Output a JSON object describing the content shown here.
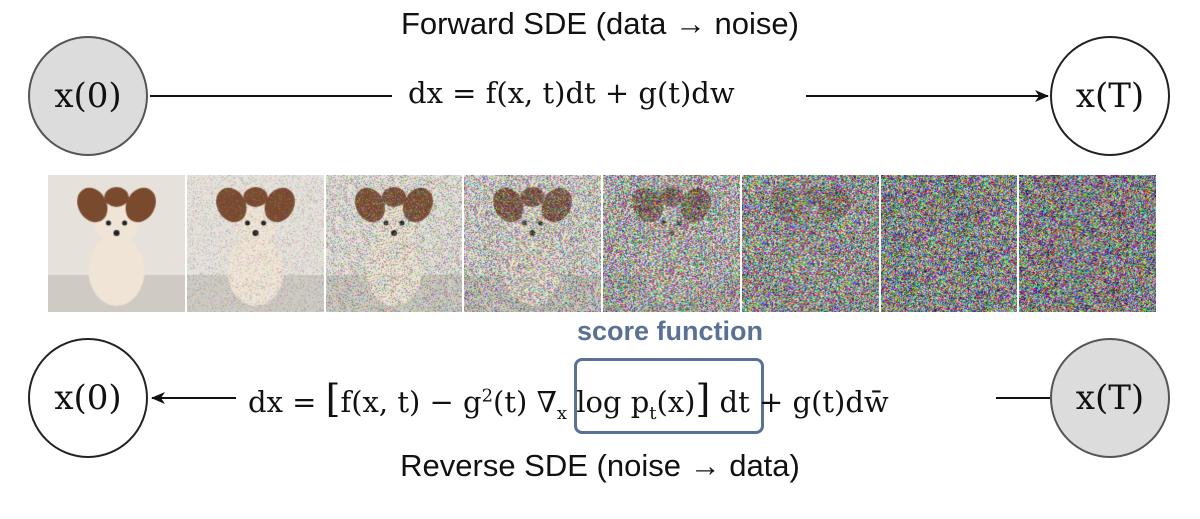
{
  "forward": {
    "title": "Forward SDE (data → noise)",
    "start_node": "x(0)",
    "end_node": "x(T)",
    "eq_lhs": "dx =",
    "eq_rhs": "f(x, t)dt + g(t)dw"
  },
  "reverse": {
    "title": "Reverse SDE (noise → data)",
    "start_node": "x(T)",
    "end_node": "x(0)",
    "eq_lhs": "dx =",
    "eq_part1": "f(x, t) − g",
    "eq_sq": "2",
    "eq_part2": "(t)",
    "score_expr": "∇",
    "score_sub": "x",
    "score_log": "log p",
    "score_t": "t",
    "score_arg": "(x)",
    "eq_tail": "dt + g(t)dw̄"
  },
  "score_label": "score function",
  "frames": {
    "count": 8,
    "noise_levels": [
      0.0,
      0.25,
      0.45,
      0.62,
      0.8,
      0.92,
      0.98,
      1.0
    ]
  },
  "colors": {
    "shaded_node": "#dcdcdc",
    "score_accent": "#5a7196"
  }
}
